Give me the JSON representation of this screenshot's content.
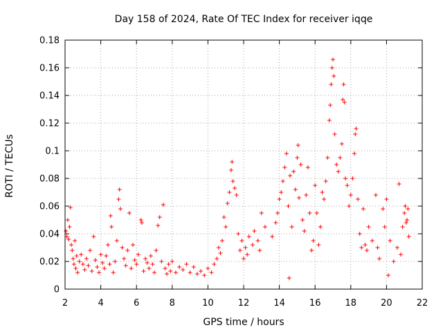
{
  "chart_data": {
    "type": "scatter",
    "title": "Day 158 of 2024, Rate Of TEC Index for receiver iqqe",
    "xlabel": "GPS time / hours",
    "ylabel": "ROTI / TECUs",
    "xlim": [
      2,
      22
    ],
    "ylim": [
      0,
      0.18
    ],
    "xticks": [
      "2",
      "4",
      "6",
      "8",
      "10",
      "12",
      "14",
      "16",
      "18",
      "20",
      "22"
    ],
    "yticks": [
      "0",
      "0.02",
      "0.04",
      "0.06",
      "0.08",
      "0.1",
      "0.12",
      "0.14",
      "0.16",
      "0.18"
    ],
    "grid": true,
    "marker": "+",
    "color": "#ff0000",
    "series": [
      {
        "name": "ROTI",
        "points": [
          [
            2.05,
            0.042
          ],
          [
            2.1,
            0.038
          ],
          [
            2.15,
            0.05
          ],
          [
            2.2,
            0.036
          ],
          [
            2.25,
            0.045
          ],
          [
            2.3,
            0.059
          ],
          [
            2.35,
            0.032
          ],
          [
            2.4,
            0.028
          ],
          [
            2.45,
            0.022
          ],
          [
            2.5,
            0.018
          ],
          [
            2.55,
            0.035
          ],
          [
            2.6,
            0.015
          ],
          [
            2.65,
            0.024
          ],
          [
            2.7,
            0.012
          ],
          [
            2.8,
            0.02
          ],
          [
            2.9,
            0.025
          ],
          [
            3.0,
            0.018
          ],
          [
            3.1,
            0.014
          ],
          [
            3.2,
            0.022
          ],
          [
            3.3,
            0.017
          ],
          [
            3.4,
            0.028
          ],
          [
            3.5,
            0.013
          ],
          [
            3.6,
            0.038
          ],
          [
            3.7,
            0.021
          ],
          [
            3.8,
            0.016
          ],
          [
            3.9,
            0.012
          ],
          [
            4.0,
            0.025
          ],
          [
            4.1,
            0.019
          ],
          [
            4.2,
            0.015
          ],
          [
            4.3,
            0.024
          ],
          [
            4.4,
            0.032
          ],
          [
            4.5,
            0.018
          ],
          [
            4.55,
            0.053
          ],
          [
            4.6,
            0.045
          ],
          [
            4.7,
            0.012
          ],
          [
            4.8,
            0.02
          ],
          [
            4.9,
            0.035
          ],
          [
            5.0,
            0.065
          ],
          [
            5.05,
            0.072
          ],
          [
            5.1,
            0.058
          ],
          [
            5.2,
            0.03
          ],
          [
            5.3,
            0.022
          ],
          [
            5.4,
            0.017
          ],
          [
            5.5,
            0.028
          ],
          [
            5.6,
            0.055
          ],
          [
            5.7,
            0.015
          ],
          [
            5.8,
            0.032
          ],
          [
            5.9,
            0.021
          ],
          [
            6.0,
            0.018
          ],
          [
            6.1,
            0.025
          ],
          [
            6.25,
            0.05
          ],
          [
            6.3,
            0.048
          ],
          [
            6.4,
            0.013
          ],
          [
            6.5,
            0.022
          ],
          [
            6.6,
            0.019
          ],
          [
            6.7,
            0.015
          ],
          [
            6.8,
            0.024
          ],
          [
            6.9,
            0.018
          ],
          [
            7.0,
            0.012
          ],
          [
            7.1,
            0.028
          ],
          [
            7.2,
            0.046
          ],
          [
            7.3,
            0.052
          ],
          [
            7.4,
            0.02
          ],
          [
            7.5,
            0.061
          ],
          [
            7.6,
            0.015
          ],
          [
            7.7,
            0.011
          ],
          [
            7.8,
            0.018
          ],
          [
            7.9,
            0.013
          ],
          [
            8.0,
            0.02
          ],
          [
            8.2,
            0.012
          ],
          [
            8.4,
            0.016
          ],
          [
            8.6,
            0.014
          ],
          [
            8.8,
            0.018
          ],
          [
            9.0,
            0.012
          ],
          [
            9.2,
            0.016
          ],
          [
            9.4,
            0.011
          ],
          [
            9.6,
            0.013
          ],
          [
            9.8,
            0.01
          ],
          [
            10.0,
            0.015
          ],
          [
            10.2,
            0.012
          ],
          [
            10.35,
            0.018
          ],
          [
            10.5,
            0.022
          ],
          [
            10.6,
            0.03
          ],
          [
            10.7,
            0.026
          ],
          [
            10.8,
            0.035
          ],
          [
            10.9,
            0.052
          ],
          [
            11.0,
            0.045
          ],
          [
            11.1,
            0.062
          ],
          [
            11.2,
            0.07
          ],
          [
            11.3,
            0.086
          ],
          [
            11.35,
            0.092
          ],
          [
            11.4,
            0.078
          ],
          [
            11.5,
            0.073
          ],
          [
            11.6,
            0.068
          ],
          [
            11.7,
            0.04
          ],
          [
            11.8,
            0.028
          ],
          [
            11.9,
            0.035
          ],
          [
            12.0,
            0.022
          ],
          [
            12.1,
            0.03
          ],
          [
            12.2,
            0.025
          ],
          [
            12.3,
            0.038
          ],
          [
            12.5,
            0.032
          ],
          [
            12.6,
            0.042
          ],
          [
            12.8,
            0.035
          ],
          [
            12.9,
            0.028
          ],
          [
            13.0,
            0.055
          ],
          [
            13.2,
            0.045
          ],
          [
            13.6,
            0.038
          ],
          [
            13.8,
            0.048
          ],
          [
            13.9,
            0.055
          ],
          [
            14.0,
            0.065
          ],
          [
            14.1,
            0.07
          ],
          [
            14.2,
            0.078
          ],
          [
            14.3,
            0.088
          ],
          [
            14.4,
            0.098
          ],
          [
            14.5,
            0.06
          ],
          [
            14.55,
            0.008
          ],
          [
            14.6,
            0.082
          ],
          [
            14.7,
            0.045
          ],
          [
            14.8,
            0.085
          ],
          [
            14.9,
            0.072
          ],
          [
            15.0,
            0.095
          ],
          [
            15.05,
            0.104
          ],
          [
            15.1,
            0.066
          ],
          [
            15.2,
            0.09
          ],
          [
            15.3,
            0.05
          ],
          [
            15.4,
            0.042
          ],
          [
            15.5,
            0.068
          ],
          [
            15.6,
            0.088
          ],
          [
            15.7,
            0.055
          ],
          [
            15.8,
            0.028
          ],
          [
            15.9,
            0.035
          ],
          [
            16.0,
            0.075
          ],
          [
            16.1,
            0.055
          ],
          [
            16.2,
            0.032
          ],
          [
            16.3,
            0.045
          ],
          [
            16.4,
            0.07
          ],
          [
            16.5,
            0.065
          ],
          [
            16.6,
            0.078
          ],
          [
            16.7,
            0.095
          ],
          [
            16.8,
            0.122
          ],
          [
            16.85,
            0.133
          ],
          [
            16.9,
            0.148
          ],
          [
            16.95,
            0.16
          ],
          [
            17.0,
            0.166
          ],
          [
            17.05,
            0.154
          ],
          [
            17.1,
            0.112
          ],
          [
            17.2,
            0.09
          ],
          [
            17.3,
            0.085
          ],
          [
            17.4,
            0.095
          ],
          [
            17.5,
            0.105
          ],
          [
            17.55,
            0.137
          ],
          [
            17.6,
            0.148
          ],
          [
            17.65,
            0.135
          ],
          [
            17.7,
            0.08
          ],
          [
            17.8,
            0.075
          ],
          [
            17.9,
            0.06
          ],
          [
            18.0,
            0.068
          ],
          [
            18.1,
            0.08
          ],
          [
            18.2,
            0.098
          ],
          [
            18.25,
            0.112
          ],
          [
            18.3,
            0.116
          ],
          [
            18.4,
            0.065
          ],
          [
            18.5,
            0.04
          ],
          [
            18.6,
            0.03
          ],
          [
            18.7,
            0.058
          ],
          [
            18.8,
            0.032
          ],
          [
            18.9,
            0.028
          ],
          [
            19.0,
            0.045
          ],
          [
            19.2,
            0.035
          ],
          [
            19.4,
            0.068
          ],
          [
            19.5,
            0.03
          ],
          [
            19.6,
            0.022
          ],
          [
            19.8,
            0.058
          ],
          [
            19.9,
            0.045
          ],
          [
            20.0,
            0.065
          ],
          [
            20.1,
            0.01
          ],
          [
            20.2,
            0.035
          ],
          [
            20.4,
            0.02
          ],
          [
            20.6,
            0.03
          ],
          [
            20.7,
            0.076
          ],
          [
            20.8,
            0.025
          ],
          [
            20.9,
            0.045
          ],
          [
            21.0,
            0.055
          ],
          [
            21.05,
            0.06
          ],
          [
            21.1,
            0.048
          ],
          [
            21.15,
            0.05
          ],
          [
            21.2,
            0.058
          ],
          [
            21.25,
            0.038
          ]
        ]
      }
    ]
  }
}
